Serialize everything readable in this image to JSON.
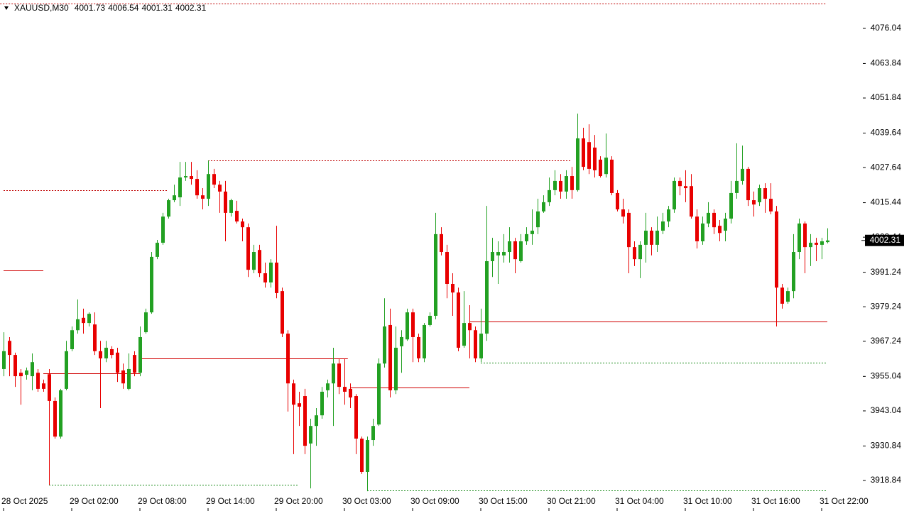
{
  "chart_data": {
    "type": "candlestick",
    "title": "XAUUSD,M30",
    "up_color": "#22a022",
    "down_color": "#e80000",
    "ylim": [
      3908.23,
      4085.91
    ],
    "xlim": [
      -0.625,
      151.25
    ],
    "yticks": [
      {
        "value": 4076.04,
        "label": "4076.04"
      },
      {
        "value": 4063.84,
        "label": "4063.84"
      },
      {
        "value": 4051.84,
        "label": "4051.84"
      },
      {
        "value": 4039.64,
        "label": "4039.64"
      },
      {
        "value": 4027.64,
        "label": "4027.64"
      },
      {
        "value": 4015.44,
        "label": "4015.44"
      },
      {
        "value": 4003.44,
        "label": "4003.44"
      },
      {
        "value": 3991.24,
        "label": "3991.24"
      },
      {
        "value": 3979.24,
        "label": "3979.24"
      },
      {
        "value": 3967.24,
        "label": "3967.24"
      },
      {
        "value": 3955.04,
        "label": "3955.04"
      },
      {
        "value": 3943.04,
        "label": "3943.04"
      },
      {
        "value": 3930.84,
        "label": "3930.84"
      },
      {
        "value": 3918.84,
        "label": "3918.84"
      }
    ],
    "xticks": [
      {
        "value": 0,
        "label": "28 Oct 2025"
      },
      {
        "value": 12,
        "label": "29 Oct 02:00"
      },
      {
        "value": 24,
        "label": "29 Oct 08:00"
      },
      {
        "value": 36,
        "label": "29 Oct 14:00"
      },
      {
        "value": 48,
        "label": "29 Oct 20:00"
      },
      {
        "value": 60,
        "label": "30 Oct 03:00"
      },
      {
        "value": 72,
        "label": "30 Oct 09:00"
      },
      {
        "value": 84,
        "label": "30 Oct 15:00"
      },
      {
        "value": 96,
        "label": "30 Oct 21:00"
      },
      {
        "value": 108,
        "label": "31 Oct 04:00"
      },
      {
        "value": 120,
        "label": "31 Oct 10:00"
      },
      {
        "value": 132,
        "label": "31 Oct 16:00"
      },
      {
        "value": 144,
        "label": "31 Oct 22:00"
      }
    ],
    "open": [
      3957.6,
      3967.4,
      3962.5,
      3956.3,
      3955.6,
      3955.1,
      3956.3,
      3952.6,
      3955.8,
      3946.5,
      3934.1,
      3950.7,
      3964.5,
      3971.1,
      3975.4,
      3973.6,
      3973.1,
      3963.8,
      3961.3,
      3964.5,
      3963.3,
      3957.1,
      3950.7,
      3962.5,
      3956.3,
      3970.4,
      3977.3,
      3996.6,
      4001.5,
      4010.6,
      4016.3,
      4017.3,
      4024.2,
      4024.7,
      4023.7,
      4018.0,
      4016.8,
      4025.4,
      4021.7,
      4019.3,
      4011.9,
      4012.6,
      4008.9,
      4006.9,
      3992.1,
      3999.0,
      3990.9,
      3987.7,
      3994.6,
      3984.7,
      3969.9,
      3952.6,
      3945.7,
      3948.2,
      3931.7,
      3937.8,
      3941.5,
      3950.2,
      3952.6,
      3959.5,
      3951.4,
      3950.7,
      3948.2,
      3933.4,
      3921.8,
      3932.9,
      3938.3,
      3959.5,
      3972.9,
      3950.2,
      3965.5,
      3967.9,
      3977.3,
      3968.7,
      3961.3,
      3972.9,
      3976.1,
      4004.5,
      3998.3,
      3987.2,
      3984.2,
      3965.7,
      3973.6,
      3971.1,
      3961.3,
      3969.9,
      3995.1,
      3997.1,
      3997.1,
      3998.3,
      4002.0,
      3995.1,
      4002.0,
      4004.5,
      4006.9,
      4012.4,
      4015.6,
      4019.8,
      4023.0,
      4019.3,
      4024.7,
      4019.8,
      4037.8,
      4036.5,
      4034.6,
      4030.4,
      4025.4,
      4030.4,
      4018.8,
      4013.1,
      4011.9,
      4000.0,
      3995.8,
      4000.8,
      4005.7,
      4000.8,
      4005.7,
      4008.9,
      4013.1,
      4023.0,
      4021.2,
      4021.2,
      4010.6,
      4002.0,
      4008.2,
      4011.9,
      4007.4,
      4005.7,
      4009.9,
      4018.8,
      4023.0,
      4027.2,
      4016.3,
      4015.6,
      4020.5,
      4016.8,
      4012.4,
      3985.9,
      3981.0,
      3984.7,
      3998.3,
      4008.2,
      4000.0,
      4001.5,
      4000.8,
      4001.73
    ],
    "high": [
      3970.4,
      3968.7,
      3963.3,
      3957.6,
      3958.1,
      3963.0,
      3957.6,
      3953.9,
      3957.6,
      3947.7,
      3950.7,
      3967.4,
      3972.4,
      3981.8,
      3978.6,
      3977.3,
      3977.3,
      3967.4,
      3967.4,
      3965.5,
      3965.0,
      3959.5,
      3963.0,
      3963.8,
      3972.4,
      3978.6,
      3998.3,
      4002.5,
      4011.9,
      4016.8,
      4021.7,
      4029.6,
      4029.6,
      4029.6,
      4026.7,
      4020.5,
      4030.1,
      4027.2,
      4023.0,
      4023.0,
      4016.8,
      4016.1,
      4009.9,
      4008.2,
      4000.8,
      4000.8,
      3994.6,
      3995.8,
      4007.4,
      3985.9,
      3971.1,
      3953.9,
      3949.7,
      3950.7,
      3940.3,
      3944.0,
      3951.4,
      3953.9,
      3965.0,
      3961.3,
      3961.3,
      3952.6,
      3948.9,
      3934.1,
      3934.1,
      3940.3,
      3961.3,
      3982.2,
      3978.6,
      3972.4,
      3971.1,
      3978.6,
      3978.6,
      3969.9,
      3973.6,
      3977.3,
      4011.9,
      4006.9,
      4000.8,
      3990.9,
      3985.9,
      3984.7,
      3979.8,
      3972.4,
      3978.6,
      4014.3,
      4003.2,
      4002.0,
      4004.5,
      4006.9,
      4003.2,
      4004.5,
      4006.9,
      4013.1,
      4016.8,
      4018.0,
      4024.2,
      4026.7,
      4025.4,
      4026.7,
      4027.9,
      4046.4,
      4041.5,
      4042.7,
      4039.0,
      4031.6,
      4039.5,
      4031.6,
      4019.8,
      4016.8,
      4013.1,
      4002.0,
      4002.0,
      4011.9,
      4006.9,
      4010.6,
      4011.9,
      4014.3,
      4024.2,
      4024.2,
      4026.7,
      4025.4,
      4013.1,
      4010.6,
      4015.6,
      4013.1,
      4009.4,
      4011.9,
      4023.0,
      4036.1,
      4035.3,
      4027.9,
      4019.3,
      4021.7,
      4022.2,
      4022.2,
      4014.3,
      3987.2,
      3985.9,
      4004.5,
      4009.9,
      4008.9,
      4004.5,
      4003.2,
      4003.2,
      4006.54
    ],
    "low": [
      3955.1,
      3955.1,
      3951.4,
      3945.2,
      3953.9,
      3950.2,
      3949.7,
      3949.7,
      3917.3,
      3933.4,
      3933.4,
      3950.2,
      3963.8,
      3969.9,
      3969.9,
      3972.4,
      3962.5,
      3944.0,
      3960.0,
      3961.3,
      3953.1,
      3950.7,
      3950.2,
      3955.1,
      3955.1,
      3969.9,
      3976.8,
      3995.8,
      4000.8,
      4009.9,
      4015.6,
      4014.3,
      4023.0,
      4021.7,
      4016.8,
      4013.1,
      4014.3,
      4020.5,
      4011.9,
      4002.0,
      4010.6,
      4008.2,
      4002.0,
      3989.6,
      3990.9,
      3989.6,
      3985.9,
      3985.9,
      3982.2,
      3968.7,
      3942.8,
      3928.0,
      3937.8,
      3928.0,
      3916.1,
      3930.9,
      3940.3,
      3947.7,
      3937.8,
      3948.9,
      3945.2,
      3944.0,
      3928.0,
      3921.1,
      3915.1,
      3930.9,
      3937.8,
      3958.1,
      3947.7,
      3948.9,
      3956.3,
      3967.4,
      3960.0,
      3960.0,
      3960.0,
      3972.4,
      3974.9,
      3997.1,
      3982.2,
      3976.1,
      3963.8,
      3965.0,
      3961.3,
      3960.0,
      3960.0,
      3967.4,
      3989.6,
      3987.2,
      3994.6,
      3994.6,
      3990.9,
      3994.6,
      4000.8,
      4000.8,
      4004.5,
      4011.9,
      4014.3,
      4018.0,
      4016.8,
      4016.8,
      4016.8,
      4019.3,
      4026.7,
      4025.4,
      4024.2,
      4024.2,
      4024.2,
      4018.0,
      4012.4,
      4008.2,
      3990.9,
      3993.4,
      3989.2,
      3994.6,
      3997.1,
      3998.3,
      4004.5,
      4006.9,
      4011.9,
      4018.0,
      4015.6,
      4009.9,
      3999.5,
      4000.8,
      4006.9,
      4004.5,
      4002.0,
      4002.0,
      4008.2,
      4016.8,
      4021.7,
      4014.3,
      4010.6,
      4014.3,
      4011.9,
      4011.4,
      3972.4,
      3978.6,
      3980.3,
      3982.2,
      3995.8,
      3990.9,
      3993.4,
      3995.1,
      3995.8,
      4001.31
    ],
    "close": [
      3963.8,
      3962.5,
      3955.1,
      3955.1,
      3957.1,
      3960.0,
      3950.7,
      3950.7,
      3946.5,
      3934.1,
      3950.2,
      3963.8,
      3971.1,
      3974.9,
      3973.6,
      3976.8,
      3963.8,
      3961.3,
      3965.0,
      3962.5,
      3956.3,
      3952.6,
      3957.6,
      3956.3,
      3968.7,
      3977.3,
      3996.6,
      4001.5,
      4010.6,
      4016.3,
      4018.0,
      4024.2,
      4024.7,
      4023.7,
      4018.0,
      4016.8,
      4025.4,
      4021.7,
      4019.3,
      4011.9,
      4016.3,
      4008.9,
      4006.9,
      3992.1,
      3998.3,
      3990.9,
      3987.7,
      3994.6,
      3984.0,
      3969.9,
      3952.6,
      3945.2,
      3944.5,
      3930.9,
      3937.8,
      3941.5,
      3949.7,
      3952.6,
      3959.5,
      3951.4,
      3949.7,
      3947.7,
      3933.4,
      3921.8,
      3932.9,
      3937.8,
      3959.5,
      3972.4,
      3950.2,
      3965.0,
      3968.7,
      3977.3,
      3968.7,
      3961.3,
      3972.9,
      3976.1,
      4004.5,
      3998.3,
      3987.2,
      3984.2,
      3965.0,
      3973.6,
      3971.1,
      3961.3,
      3969.9,
      3995.1,
      3998.3,
      3998.3,
      3998.3,
      4002.0,
      3995.8,
      4002.0,
      4004.5,
      4005.7,
      4012.4,
      4015.6,
      4019.8,
      4023.0,
      4019.3,
      4024.7,
      4019.8,
      4037.8,
      4027.9,
      4027.2,
      4026.7,
      4024.7,
      4031.1,
      4018.8,
      4013.1,
      4010.6,
      4000.0,
      3995.8,
      4000.8,
      4005.7,
      4000.8,
      4005.7,
      4008.9,
      4013.1,
      4023.0,
      4021.2,
      4020.5,
      4010.6,
      4002.0,
      4008.2,
      4011.9,
      4006.9,
      4004.9,
      4009.9,
      4018.8,
      4023.0,
      4027.2,
      4016.3,
      4014.8,
      4020.5,
      4016.8,
      4012.4,
      3985.9,
      3980.3,
      3984.7,
      3998.3,
      4008.2,
      4000.0,
      4001.5,
      4000.8,
      4002.0,
      4002.31
    ],
    "levels": [
      {
        "price": 4084.7,
        "from": -0.6,
        "to": 144.8,
        "style": "dotted",
        "color": "#c00000"
      },
      {
        "price": 4019.8,
        "from": 0,
        "to": 29,
        "style": "dotted",
        "color": "#c00000"
      },
      {
        "price": 3991.9,
        "from": 0,
        "to": 7,
        "style": "solid",
        "color": "#d00000"
      },
      {
        "price": 4030.1,
        "from": 36,
        "to": 100,
        "style": "dotted",
        "color": "#c00000"
      },
      {
        "price": 3956.1,
        "from": 7,
        "to": 24,
        "style": "solid",
        "color": "#d00000"
      },
      {
        "price": 3961.3,
        "from": 24,
        "to": 60.6,
        "style": "solid",
        "color": "#d00000"
      },
      {
        "price": 3951.1,
        "from": 61,
        "to": 82,
        "style": "solid",
        "color": "#d00000"
      },
      {
        "price": 3974.2,
        "from": 82,
        "to": 145,
        "style": "solid",
        "color": "#d00000"
      },
      {
        "price": 3917.3,
        "from": 8,
        "to": 52,
        "style": "dotted",
        "color": "#1a8c1a"
      },
      {
        "price": 3915.4,
        "from": 64,
        "to": 145,
        "style": "dotted",
        "color": "#1a8c1a"
      },
      {
        "price": 3959.8,
        "from": 84,
        "to": 145,
        "style": "dotted",
        "color": "#1a8c1a"
      }
    ]
  }
}
